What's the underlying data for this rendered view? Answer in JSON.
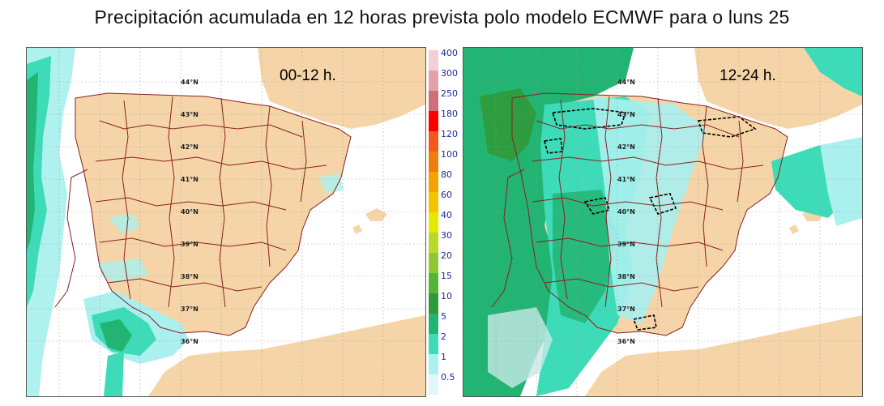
{
  "title": "Precipitación acumulada en 12 horas prevista polo modelo ECMWF para o luns 25",
  "maps": [
    {
      "id": "left",
      "period": "00-12 h."
    },
    {
      "id": "right",
      "period": "12-24 h."
    }
  ],
  "latitudes": [
    "44°N",
    "43°N",
    "42°N",
    "41°N",
    "40°N",
    "39°N",
    "38°N",
    "37°N",
    "36°N"
  ],
  "legend": {
    "ticks": [
      "400",
      "300",
      "250",
      "180",
      "120",
      "100",
      "80",
      "60",
      "40",
      "30",
      "20",
      "15",
      "10",
      "5",
      "2",
      "1",
      "0.5"
    ],
    "colors": [
      "#f2cfd3",
      "#e3a2a9",
      "#cf6f7a",
      "#ff0000",
      "#f4571e",
      "#f07c12",
      "#f5a200",
      "#f5c400",
      "#e5e800",
      "#b8d82a",
      "#8ec834",
      "#55b534",
      "#2f9a3a",
      "#22b472",
      "#3ddbb8",
      "#aaf0ee",
      "#dff7f7"
    ]
  },
  "colors": {
    "land": "#f5d5a8",
    "sea": "#ffffff",
    "border": "#8b1f1f",
    "grid": "#9a9a9a",
    "precip_light": "#aaf0ee",
    "precip_cyan": "#3ddbb8",
    "precip_green": "#22b472",
    "precip_dark": "#2f9a3a"
  }
}
